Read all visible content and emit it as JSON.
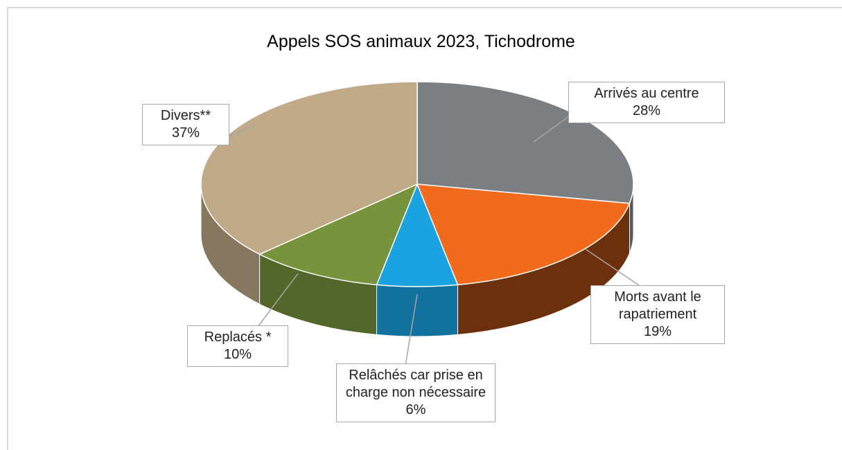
{
  "chart_data": {
    "type": "pie",
    "title": "Appels SOS animaux 2023, Tichodrome",
    "categories": [
      "Arrivés au centre",
      "Morts avant le rapatriement",
      "Relâchés car prise en charge non nécessaire",
      "Replacés *",
      "Divers**"
    ],
    "values": [
      28,
      19,
      6,
      10,
      37
    ],
    "value_labels": [
      "28%",
      "19%",
      "6%",
      "10%",
      "37%"
    ],
    "colors": [
      "#7b7f83",
      "#f26a1b",
      "#1aa3e0",
      "#77933c",
      "#c0aa88"
    ]
  }
}
